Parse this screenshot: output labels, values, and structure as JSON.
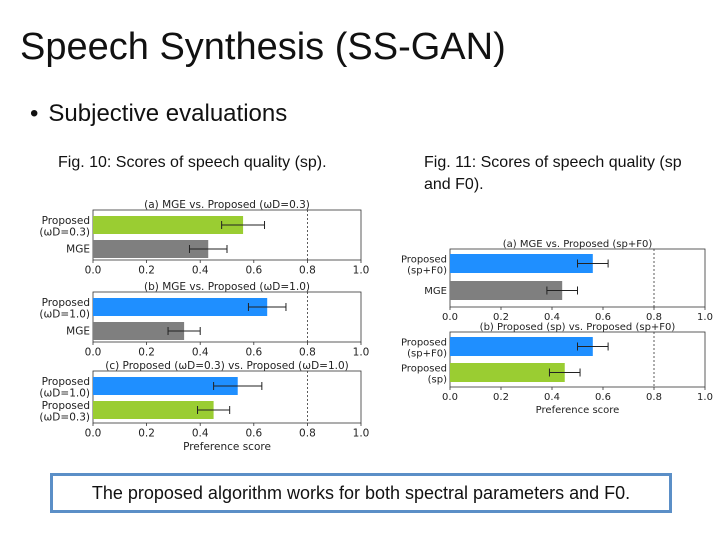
{
  "slide": {
    "title": "Speech Synthesis (SS-GAN)",
    "bullet": "Subjective evaluations",
    "conclusion": "The proposed algorithm works for both spectral parameters and F0."
  },
  "figures": {
    "left_caption": "Fig. 10: Scores of speech quality (sp).",
    "right_caption": "Fig. 11: Scores of speech quality (sp and F0)."
  },
  "colors": {
    "proposed": "#9acd32",
    "proposed_blue": "#1f8fff",
    "mge": "#7f7f7f",
    "conclusion_border": "#5b8fc7"
  },
  "chart_data": [
    {
      "type": "bar",
      "orientation": "horizontal",
      "title": "(a) MGE vs. Proposed (ωD=0.3)",
      "categories": [
        [
          "Proposed",
          "(ωD=0.3)"
        ],
        [
          "MGE"
        ]
      ],
      "values": [
        0.56,
        0.43
      ],
      "errors": [
        0.08,
        0.07
      ],
      "colors": [
        "#9acd32",
        "#7f7f7f"
      ],
      "xlim": [
        0,
        1
      ],
      "xticks": [
        "0.0",
        "0.2",
        "0.4",
        "0.6",
        "0.8",
        "1.0"
      ],
      "xlabel": "",
      "refline": 0.8
    },
    {
      "type": "bar",
      "orientation": "horizontal",
      "title": "(b) MGE vs. Proposed (ωD=1.0)",
      "categories": [
        [
          "Proposed",
          "(ωD=1.0)"
        ],
        [
          "MGE"
        ]
      ],
      "values": [
        0.65,
        0.34
      ],
      "errors": [
        0.07,
        0.06
      ],
      "colors": [
        "#1f8fff",
        "#7f7f7f"
      ],
      "xlim": [
        0,
        1
      ],
      "xticks": [
        "0.0",
        "0.2",
        "0.4",
        "0.6",
        "0.8",
        "1.0"
      ],
      "xlabel": "",
      "refline": 0.8
    },
    {
      "type": "bar",
      "orientation": "horizontal",
      "title": "(c) Proposed (ωD=0.3) vs. Proposed (ωD=1.0)",
      "categories": [
        [
          "Proposed",
          "(ωD=1.0)"
        ],
        [
          "Proposed",
          "(ωD=0.3)"
        ]
      ],
      "values": [
        0.54,
        0.45
      ],
      "errors": [
        0.09,
        0.06
      ],
      "colors": [
        "#1f8fff",
        "#9acd32"
      ],
      "xlim": [
        0,
        1
      ],
      "xticks": [
        "0.0",
        "0.2",
        "0.4",
        "0.6",
        "0.8",
        "1.0"
      ],
      "xlabel": "Preference score",
      "refline": 0.8
    },
    {
      "type": "bar",
      "orientation": "horizontal",
      "title": "(a) MGE vs. Proposed (sp+F0)",
      "categories": [
        [
          "Proposed",
          "(sp+F0)"
        ],
        [
          "MGE"
        ]
      ],
      "values": [
        0.56,
        0.44
      ],
      "errors": [
        0.06,
        0.06
      ],
      "colors": [
        "#1f8fff",
        "#7f7f7f"
      ],
      "xlim": [
        0,
        1
      ],
      "xticks": [
        "0.0",
        "0.2",
        "0.4",
        "0.6",
        "0.8",
        "1.0"
      ],
      "xlabel": "",
      "refline": 0.8
    },
    {
      "type": "bar",
      "orientation": "horizontal",
      "title": "(b) Proposed (sp) vs. Proposed (sp+F0)",
      "categories": [
        [
          "Proposed",
          "(sp+F0)"
        ],
        [
          "Proposed",
          "(sp)"
        ]
      ],
      "values": [
        0.56,
        0.45
      ],
      "errors": [
        0.06,
        0.06
      ],
      "colors": [
        "#1f8fff",
        "#9acd32"
      ],
      "xlim": [
        0,
        1
      ],
      "xticks": [
        "0.0",
        "0.2",
        "0.4",
        "0.6",
        "0.8",
        "1.0"
      ],
      "xlabel": "Preference score",
      "refline": 0.8
    }
  ]
}
